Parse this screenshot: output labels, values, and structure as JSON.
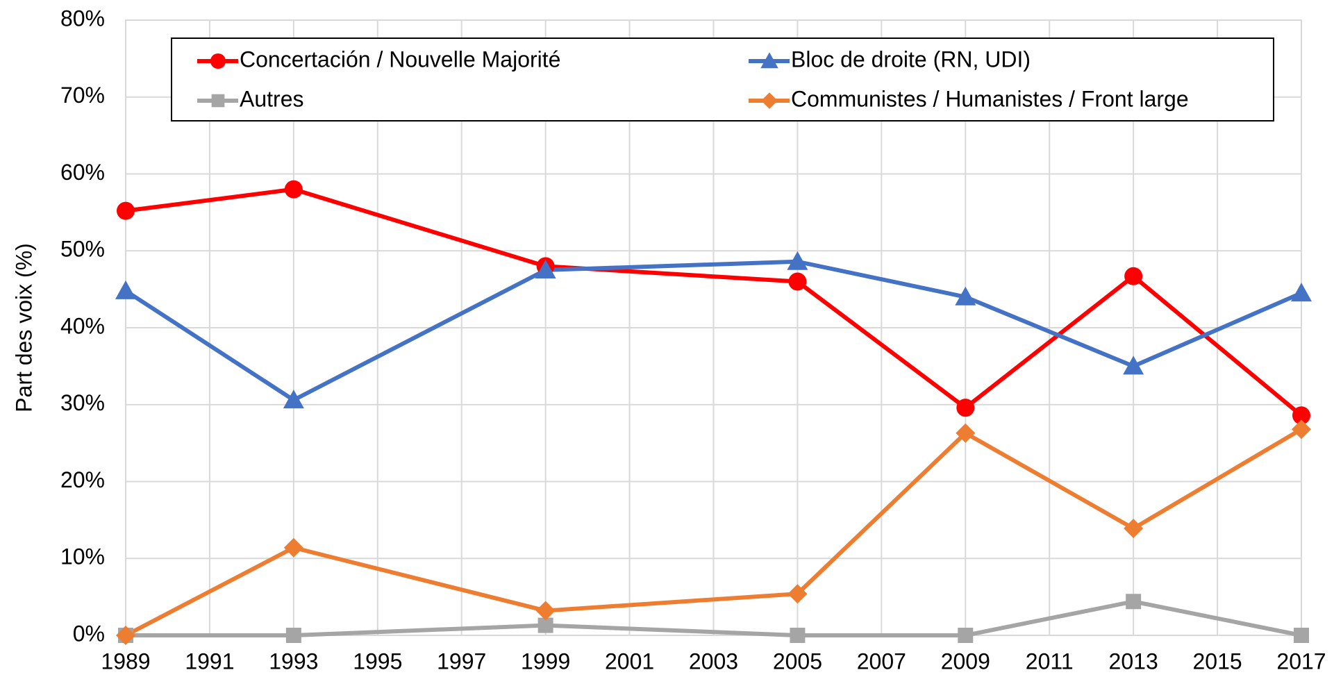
{
  "chart_data": {
    "type": "line",
    "y_label": "Part des voix (%)",
    "x": [
      1989,
      1993,
      1999,
      2005,
      2009,
      2013,
      2017
    ],
    "xlim": [
      1989,
      2017
    ],
    "xticks": [
      1989,
      1991,
      1993,
      1995,
      1997,
      1999,
      2001,
      2003,
      2005,
      2007,
      2009,
      2011,
      2013,
      2015,
      2017
    ],
    "ylim": [
      0,
      80
    ],
    "yticks": [
      {
        "value": 0,
        "label": "0%"
      },
      {
        "value": 10,
        "label": "10%"
      },
      {
        "value": 20,
        "label": "20%"
      },
      {
        "value": 30,
        "label": "30%"
      },
      {
        "value": 40,
        "label": "40%"
      },
      {
        "value": 50,
        "label": "50%"
      },
      {
        "value": 60,
        "label": "60%"
      },
      {
        "value": 70,
        "label": "70%"
      },
      {
        "value": 80,
        "label": "80%"
      }
    ],
    "grid": true,
    "legend": "top",
    "series": [
      {
        "name": "Concertación / Nouvelle Majorité",
        "color": "#ff0000",
        "marker": "circle",
        "values": [
          55.2,
          58.0,
          48.0,
          46.0,
          29.6,
          46.7,
          28.6
        ]
      },
      {
        "name": "Bloc de droite (RN, UDI)",
        "color": "#4472c4",
        "marker": "triangle",
        "values": [
          44.8,
          30.6,
          47.5,
          48.6,
          44.0,
          35.0,
          44.5
        ]
      },
      {
        "name": "Autres",
        "color": "#a5a5a5",
        "marker": "square",
        "values": [
          0,
          0,
          1.3,
          0,
          0,
          4.4,
          0
        ]
      },
      {
        "name": "Communistes / Humanistes / Front large",
        "color": "#ed7d31",
        "marker": "diamond",
        "values": [
          0,
          11.4,
          3.2,
          5.4,
          26.3,
          13.9,
          26.8
        ]
      }
    ]
  }
}
